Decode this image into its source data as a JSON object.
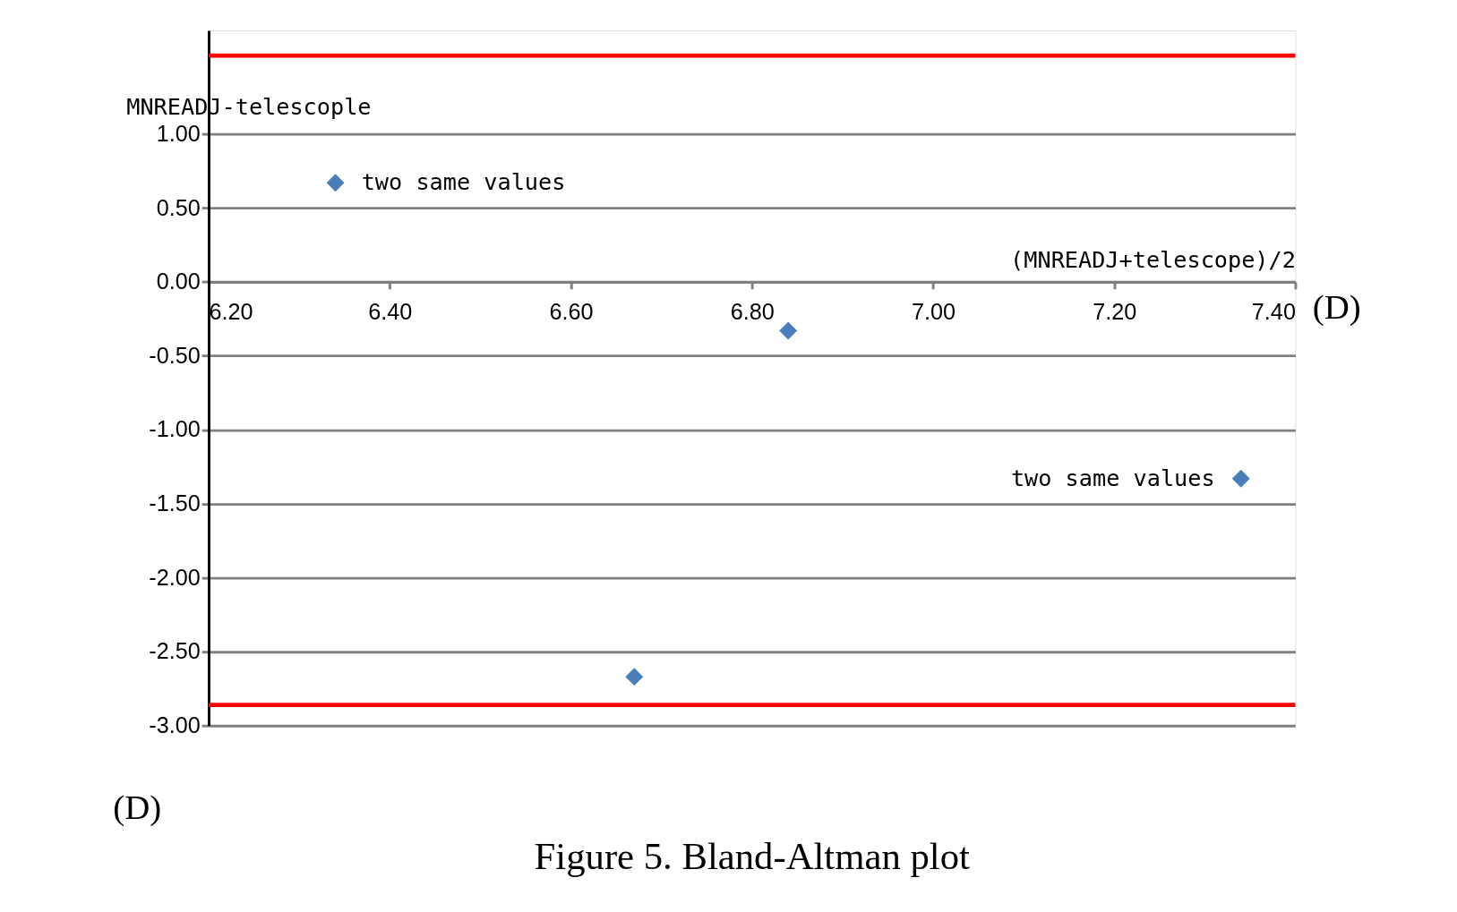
{
  "chart_data": {
    "type": "scatter",
    "title": "Figure 5.   Bland-Altman plot",
    "xlabel": "(MNREADJ+telescope)/2",
    "ylabel": "MNREADJ-telescople",
    "series": [
      {
        "color": "#4a7ebb",
        "x": [
          6.34,
          6.84,
          6.67,
          7.34
        ],
        "values": [
          0.67,
          -0.33,
          -2.67,
          -1.33
        ]
      }
    ],
    "xlim": [
      6.2,
      7.4
    ],
    "ylim": [
      -3.0,
      1.7
    ],
    "xticks": [
      {
        "value": 6.2,
        "label": "6.20"
      },
      {
        "value": 6.4,
        "label": "6.40"
      },
      {
        "value": 6.6,
        "label": "6.60"
      },
      {
        "value": 6.8,
        "label": "6.80"
      },
      {
        "value": 7.0,
        "label": "7.00"
      },
      {
        "value": 7.2,
        "label": "7.20"
      },
      {
        "value": 7.4,
        "label": "7.40"
      }
    ],
    "yticks": [
      {
        "value": 1.0,
        "label": "1.00"
      },
      {
        "value": 0.5,
        "label": "0.50"
      },
      {
        "value": 0.0,
        "label": "0.00"
      },
      {
        "value": -0.5,
        "label": "-0.50"
      },
      {
        "value": -1.0,
        "label": "-1.00"
      },
      {
        "value": -1.5,
        "label": "-1.50"
      },
      {
        "value": -2.0,
        "label": "-2.00"
      },
      {
        "value": -2.5,
        "label": "-2.50"
      },
      {
        "value": -3.0,
        "label": "-3.00"
      }
    ],
    "ref_lines": [
      {
        "axis": "y",
        "value": 1.53,
        "color": "#ff0000"
      },
      {
        "axis": "y",
        "value": -2.86,
        "color": "#ff0000"
      }
    ],
    "annotations": [
      {
        "text": "two same values",
        "x": 6.34,
        "y": 0.67
      },
      {
        "text": "two same values",
        "x": 7.34,
        "y": -1.33
      },
      "(D)",
      "(D)"
    ],
    "grid": "y",
    "marker": "diamond"
  }
}
